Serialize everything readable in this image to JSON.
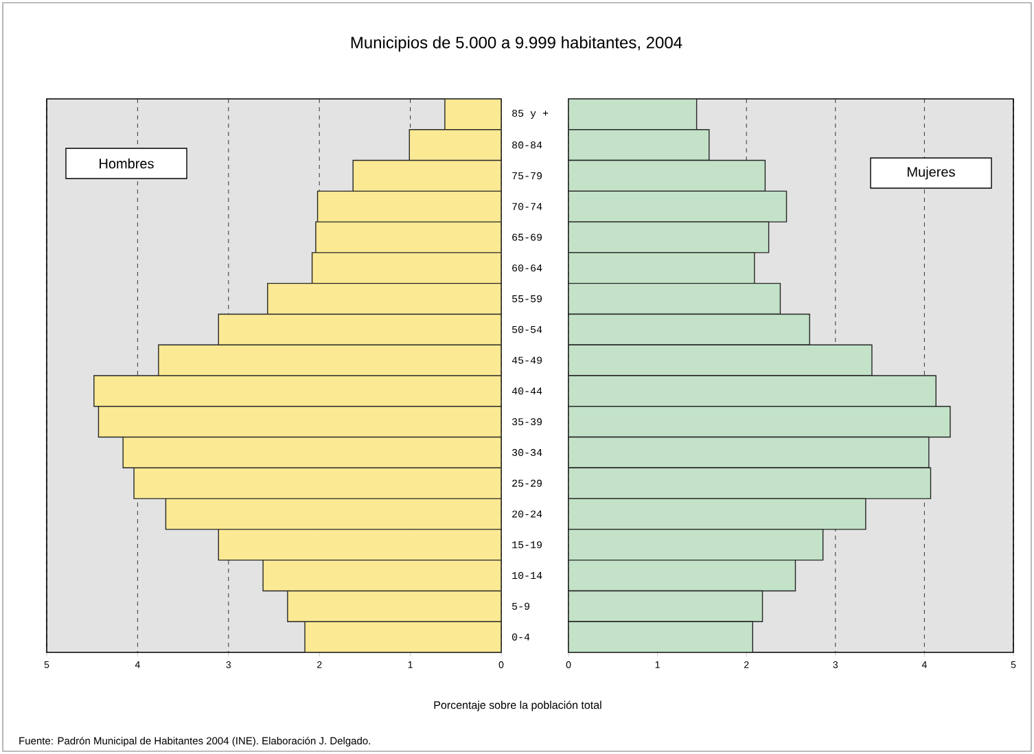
{
  "chart_data": [
    {
      "type": "bar",
      "orientation": "horizontal",
      "title": "Municipios de 5.000 a 9.999 habitantes, 2004",
      "xlabel": "Porcentaje sobre la población total",
      "annotations": [
        "Fuente: Padrón Municipal de Habitantes 2004 (INE). Elaboración J. Delgado."
      ],
      "categories": [
        null,
        null,
        null,
        null,
        null,
        null,
        null,
        null,
        null,
        null,
        null,
        null,
        null,
        null,
        null,
        null,
        null,
        null
      ],
      "series": [
        {
          "name": "Hombres",
          "color": "#fbe994",
          "values": [
            0.62,
            1.01,
            1.63,
            2.02,
            2.04,
            2.08,
            2.57,
            3.11,
            3.77,
            4.48,
            4.43,
            4.16,
            4.04,
            3.69,
            3.11,
            2.62,
            2.35,
            2.16
          ]
        }
      ],
      "xlim": [
        5,
        0
      ],
      "xticks": [
        5,
        4,
        3,
        2,
        1,
        0
      ],
      "grid": "x",
      "tick_labels": "x",
      "legend": "top left"
    },
    {
      "type": "bar",
      "orientation": "horizontal",
      "categories": [
        "85 y +",
        "80-84",
        "75-79",
        "70-74",
        "65-69",
        "60-64",
        "55-59",
        "50-54",
        "45-49",
        "40-44",
        "35-39",
        "30-34",
        "25-29",
        "20-24",
        "15-19",
        "10-14",
        "5-9",
        "0-4"
      ],
      "series": [
        {
          "name": "Mujeres",
          "color": "#c3e2c8",
          "values": [
            1.44,
            1.58,
            2.21,
            2.45,
            2.25,
            2.09,
            2.38,
            2.71,
            3.41,
            4.13,
            4.29,
            4.05,
            4.07,
            3.34,
            2.86,
            2.55,
            2.18,
            2.07
          ]
        }
      ],
      "xlim": [
        0,
        5
      ],
      "xticks": [
        0,
        1,
        2,
        3,
        4,
        5
      ],
      "grid": "x",
      "legend": "top right"
    }
  ]
}
